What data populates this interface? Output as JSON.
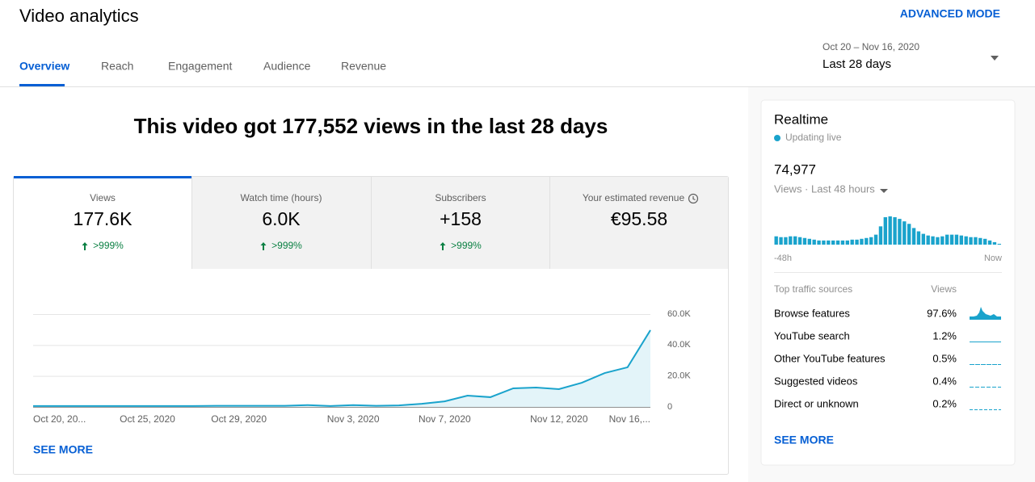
{
  "header": {
    "title": "Video analytics",
    "advanced_mode": "ADVANCED MODE",
    "tabs": [
      "Overview",
      "Reach",
      "Engagement",
      "Audience",
      "Revenue"
    ],
    "date_range": "Oct 20 – Nov 16, 2020",
    "period": "Last 28 days"
  },
  "main": {
    "headline": "This video got 177,552 views in the last 28 days",
    "metrics": [
      {
        "label": "Views",
        "value": "177.6K",
        "change": ">999%"
      },
      {
        "label": "Watch time (hours)",
        "value": "6.0K",
        "change": ">999%"
      },
      {
        "label": "Subscribers",
        "value": "+158",
        "change": ">999%"
      },
      {
        "label": "Your estimated revenue",
        "value": "€95.58"
      }
    ],
    "see_more": "SEE MORE"
  },
  "realtime": {
    "title": "Realtime",
    "status": "Updating live",
    "count": "74,977",
    "subtitle": "Views · Last 48 hours",
    "traffic_title": "Top traffic sources",
    "traffic_column": "Views",
    "sources": [
      {
        "name": "Browse features",
        "share": "97.6%"
      },
      {
        "name": "YouTube search",
        "share": "1.2%"
      },
      {
        "name": "Other YouTube features",
        "share": "0.5%"
      },
      {
        "name": "Suggested videos",
        "share": "0.4%"
      },
      {
        "name": "Direct or unknown",
        "share": "0.2%"
      }
    ],
    "see_more": "SEE MORE"
  },
  "chart_data": [
    {
      "type": "line",
      "categories": [
        "Oct 20, 20...",
        null,
        null,
        null,
        null,
        "Oct 25, 2020",
        null,
        null,
        null,
        "Oct 29, 2020",
        null,
        null,
        null,
        null,
        "Nov 3, 2020",
        null,
        null,
        null,
        "Nov 7, 2020",
        null,
        null,
        null,
        null,
        "Nov 12, 2020",
        null,
        null,
        null,
        "Nov 16,..."
      ],
      "values": [
        600,
        600,
        600,
        600,
        600,
        600,
        600,
        600,
        700,
        700,
        700,
        700,
        1200,
        600,
        1200,
        700,
        1000,
        2000,
        3600,
        7300,
        6300,
        12000,
        12500,
        11500,
        15600,
        21900,
        25600,
        49600
      ],
      "color": "#1aa3cc",
      "fill_color": "#e3f4f9",
      "ylim": [
        0,
        60000
      ],
      "yticks": [
        0,
        {
          "value": 20000,
          "label": "20.0K"
        },
        {
          "value": 40000,
          "label": "40.0K"
        },
        {
          "value": 60000,
          "label": "60.0K"
        }
      ],
      "grid": true
    },
    {
      "type": "bar",
      "categories": [
        "-48h",
        null,
        null,
        null,
        null,
        null,
        null,
        null,
        null,
        null,
        null,
        null,
        null,
        null,
        null,
        null,
        null,
        null,
        null,
        null,
        null,
        null,
        null,
        null,
        null,
        null,
        null,
        null,
        null,
        null,
        null,
        null,
        null,
        null,
        null,
        null,
        null,
        null,
        null,
        null,
        null,
        null,
        null,
        null,
        null,
        null,
        null,
        "Now"
      ],
      "values": [
        1350,
        1215,
        1215,
        1350,
        1350,
        1215,
        1080,
        945,
        810,
        675,
        675,
        675,
        675,
        675,
        675,
        675,
        810,
        810,
        945,
        1080,
        1215,
        1620,
        2970,
        4455,
        4590,
        4455,
        4185,
        3780,
        3375,
        2700,
        2160,
        1755,
        1485,
        1350,
        1215,
        1350,
        1620,
        1620,
        1620,
        1485,
        1350,
        1215,
        1215,
        1080,
        945,
        675,
        405,
        135
      ],
      "color": "#1aa3cc"
    }
  ]
}
